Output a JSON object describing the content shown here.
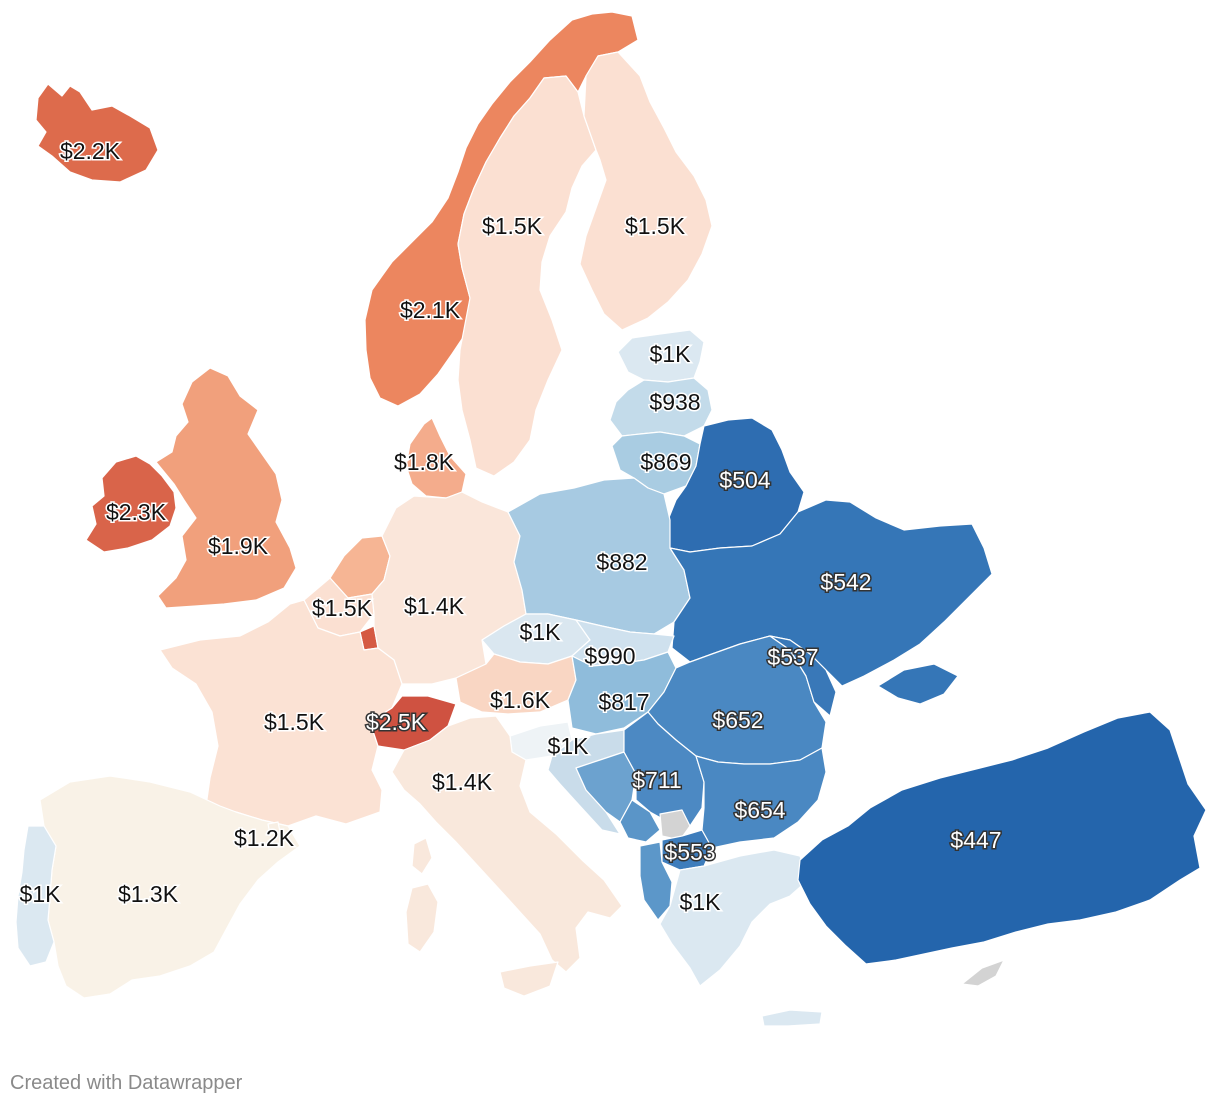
{
  "chart_data": {
    "type": "choropleth",
    "title": "",
    "regions": [
      {
        "name": "Iceland",
        "value_label": "$2.2K",
        "color": "#dd6b4c"
      },
      {
        "name": "Norway",
        "value_label": "$2.1K",
        "color": "#ec865f"
      },
      {
        "name": "Sweden",
        "value_label": "$1.5K",
        "color": "#fbe0d2"
      },
      {
        "name": "Finland",
        "value_label": "$1.5K",
        "color": "#fbe0d2"
      },
      {
        "name": "Estonia",
        "value_label": "$1K",
        "color": "#dbe8f1"
      },
      {
        "name": "Latvia",
        "value_label": "$938",
        "color": "#c3dbea"
      },
      {
        "name": "Lithuania",
        "value_label": "$869",
        "color": "#a9cce2"
      },
      {
        "name": "Belarus",
        "value_label": "$504",
        "color": "#2e6db1"
      },
      {
        "name": "Ireland",
        "value_label": "$2.3K",
        "color": "#d9644a"
      },
      {
        "name": "United Kingdom",
        "value_label": "$1.9K",
        "color": "#f1a07c"
      },
      {
        "name": "Denmark",
        "value_label": "$1.8K",
        "color": "#f4ac8c"
      },
      {
        "name": "Netherlands",
        "value_label": "",
        "color": "#f6b594"
      },
      {
        "name": "Belgium",
        "value_label": "$1.5K",
        "color": "#fbe0d2"
      },
      {
        "name": "Luxembourg",
        "value_label": "",
        "color": "#d55a43"
      },
      {
        "name": "Germany",
        "value_label": "$1.4K",
        "color": "#fae6da"
      },
      {
        "name": "Poland",
        "value_label": "$882",
        "color": "#a7cae2"
      },
      {
        "name": "Ukraine",
        "value_label": "$542",
        "color": "#3576b7"
      },
      {
        "name": "Czechia",
        "value_label": "$1K",
        "color": "#dae7f0"
      },
      {
        "name": "Slovakia",
        "value_label": "$990",
        "color": "#cfe1ee"
      },
      {
        "name": "Austria",
        "value_label": "$1.6K",
        "color": "#f9d6c3"
      },
      {
        "name": "Moldova",
        "value_label": "$537",
        "color": "#3978b8"
      },
      {
        "name": "Hungary",
        "value_label": "$817",
        "color": "#8fbcdb"
      },
      {
        "name": "Romania",
        "value_label": "$652",
        "color": "#4a88c2"
      },
      {
        "name": "France",
        "value_label": "$1.5K",
        "color": "#fbe2d4"
      },
      {
        "name": "Switzerland",
        "value_label": "$2.5K",
        "color": "#cf5241"
      },
      {
        "name": "Slovenia",
        "value_label": "$1K",
        "color": "#eef3f6"
      },
      {
        "name": "Croatia",
        "value_label": "",
        "color": "#c9dcea"
      },
      {
        "name": "Serbia",
        "value_label": "$711",
        "color": "#4c89c3"
      },
      {
        "name": "Bosnia and Herzegovina",
        "value_label": "",
        "color": "#6ca2cf"
      },
      {
        "name": "Montenegro",
        "value_label": "",
        "color": "#5a95c8"
      },
      {
        "name": "Kosovo",
        "value_label": "",
        "color": "#d3d3d3"
      },
      {
        "name": "North Macedonia",
        "value_label": "$553",
        "color": "#3e7dbc"
      },
      {
        "name": "Albania",
        "value_label": "",
        "color": "#5c97c9"
      },
      {
        "name": "Bulgaria",
        "value_label": "$654",
        "color": "#4a88c2"
      },
      {
        "name": "Greece",
        "value_label": "$1K",
        "color": "#dbe8f1"
      },
      {
        "name": "Turkey",
        "value_label": "$447",
        "color": "#2465ac"
      },
      {
        "name": "Cyprus",
        "value_label": "",
        "color": "#d3d3d3"
      },
      {
        "name": "Italy",
        "value_label": "$1.4K",
        "color": "#f9e8dc"
      },
      {
        "name": "Spain",
        "value_label": "$1.3K",
        "color": "#f9f2e7"
      },
      {
        "name": "Portugal",
        "value_label": "$1K",
        "color": "#dbe8f1"
      },
      {
        "name": "Andorra",
        "value_label": "$1.2K",
        "color": "#f8efe4"
      }
    ]
  },
  "footer": {
    "credit": "Created with Datawrapper"
  }
}
